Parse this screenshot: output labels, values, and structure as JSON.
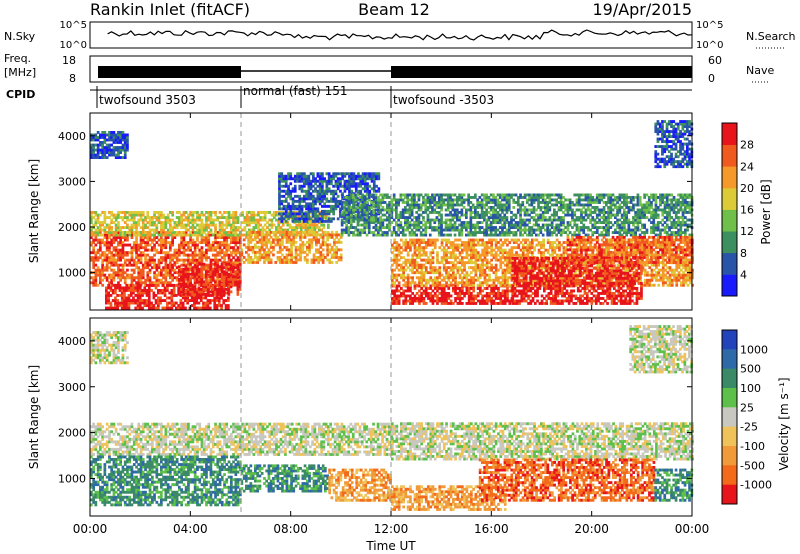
{
  "header": {
    "station": "Rankin Inlet (fitACF)",
    "beam": "Beam 12",
    "date": "19/Apr/2015"
  },
  "top_panels": {
    "nsky_label": "N.Sky",
    "nsky_ticks": [
      "10^5",
      "10^0"
    ],
    "nsearch_label": "N.Search",
    "nsearch_ticks": [
      "10^5",
      "10^0"
    ],
    "freq_label_1": "Freq.",
    "freq_label_2": "[MHz]",
    "freq_ticks": [
      "18",
      "8"
    ],
    "nave_label": "Nave",
    "nave_ticks": [
      "60",
      "0"
    ],
    "cpid_label": "CPID",
    "cpid_segments": [
      {
        "label": "twofsound 3503",
        "start_hour": 0,
        "end_hour": 6
      },
      {
        "label": "normal (fast) 151",
        "start_hour": 6,
        "end_hour": 12
      },
      {
        "label": "twofsound -3503",
        "start_hour": 12,
        "end_hour": 24
      }
    ]
  },
  "power_panel": {
    "ylabel": "Slant Range [km]",
    "yticks": [
      "1000",
      "2000",
      "3000",
      "4000"
    ],
    "colorbar_label": "Power [dB]",
    "colorbar_ticks": [
      "4",
      "8",
      "12",
      "16",
      "20",
      "24",
      "28"
    ],
    "colors": [
      "#1a1aff",
      "#2855a8",
      "#3c8f5e",
      "#6fc04a",
      "#dccb36",
      "#f59a2a",
      "#f05a1e",
      "#e8141c"
    ]
  },
  "velocity_panel": {
    "ylabel": "Slant Range [km]",
    "yticks": [
      "1000",
      "2000",
      "3000",
      "4000"
    ],
    "colorbar_label": "Velocity [m s⁻¹]",
    "colorbar_ticks": [
      "1000",
      "500",
      "100",
      "25",
      "-25",
      "-100",
      "-500",
      "-1000"
    ],
    "colors": [
      "#2244bb",
      "#2f6aa8",
      "#3a8a68",
      "#5cc04a",
      "#c8c8c0",
      "#efc25a",
      "#f09a3a",
      "#f26a1a",
      "#e8141c"
    ]
  },
  "x_axis": {
    "ticks": [
      "00:00",
      "04:00",
      "08:00",
      "12:00",
      "16:00",
      "20:00",
      "00:00"
    ],
    "label": "Time UT"
  },
  "chart_data": [
    {
      "type": "heatmap",
      "title": "Power",
      "xlabel": "Time UT",
      "ylabel": "Slant Range [km]",
      "xlim": [
        0,
        24
      ],
      "ylim": [
        180,
        4500
      ],
      "colorbar": "Power [dB]",
      "clim": [
        0,
        30
      ],
      "blobs": [
        {
          "t": [
            0.0,
            6.0
          ],
          "r": [
            700,
            1900
          ],
          "level": 6
        },
        {
          "t": [
            0.6,
            5.5
          ],
          "r": [
            200,
            700
          ],
          "level": 7
        },
        {
          "t": [
            3.5,
            6.0
          ],
          "r": [
            500,
            1200
          ],
          "level": 7
        },
        {
          "t": [
            0.0,
            9.5
          ],
          "r": [
            1800,
            2300
          ],
          "level": 4
        },
        {
          "t": [
            6.0,
            10.0
          ],
          "r": [
            1200,
            1900
          ],
          "level": 5
        },
        {
          "t": [
            7.5,
            11.5
          ],
          "r": [
            2100,
            3200
          ],
          "level": 1
        },
        {
          "t": [
            10.0,
            24.0
          ],
          "r": [
            1800,
            2700
          ],
          "level": 2
        },
        {
          "t": [
            12.0,
            16.8
          ],
          "r": [
            300,
            700
          ],
          "level": 7
        },
        {
          "t": [
            12.0,
            24.0
          ],
          "r": [
            700,
            1700
          ],
          "level": 5
        },
        {
          "t": [
            16.8,
            22.0
          ],
          "r": [
            300,
            1300
          ],
          "level": 7
        },
        {
          "t": [
            19.0,
            24.0
          ],
          "r": [
            1200,
            1800
          ],
          "level": 6
        },
        {
          "t": [
            0.0,
            1.5
          ],
          "r": [
            3500,
            4100
          ],
          "level": 1
        },
        {
          "t": [
            22.5,
            24.0
          ],
          "r": [
            3300,
            4300
          ],
          "level": 1
        }
      ]
    },
    {
      "type": "heatmap",
      "title": "Velocity",
      "xlabel": "Time UT",
      "ylabel": "Slant Range [km]",
      "xlim": [
        0,
        24
      ],
      "ylim": [
        180,
        4500
      ],
      "colorbar": "Velocity [m s⁻¹]",
      "clim": [
        -1000,
        1000
      ],
      "blobs": [
        {
          "t": [
            0.0,
            12.0
          ],
          "r": [
            1500,
            2200
          ],
          "level": 4
        },
        {
          "t": [
            0.0,
            6.0
          ],
          "r": [
            400,
            1500
          ],
          "level": 2
        },
        {
          "t": [
            6.0,
            9.5
          ],
          "r": [
            700,
            1300
          ],
          "level": 2
        },
        {
          "t": [
            9.5,
            12.0
          ],
          "r": [
            500,
            1200
          ],
          "level": 6
        },
        {
          "t": [
            12.0,
            24.0
          ],
          "r": [
            1400,
            2200
          ],
          "level": 4
        },
        {
          "t": [
            12.0,
            16.5
          ],
          "r": [
            300,
            800
          ],
          "level": 6
        },
        {
          "t": [
            15.5,
            22.5
          ],
          "r": [
            500,
            1400
          ],
          "level": 7
        },
        {
          "t": [
            22.5,
            24.0
          ],
          "r": [
            500,
            1200
          ],
          "level": 2
        },
        {
          "t": [
            0.0,
            1.5
          ],
          "r": [
            3500,
            4200
          ],
          "level": 4
        },
        {
          "t": [
            21.5,
            24.0
          ],
          "r": [
            3300,
            4300
          ],
          "level": 4
        }
      ]
    }
  ]
}
